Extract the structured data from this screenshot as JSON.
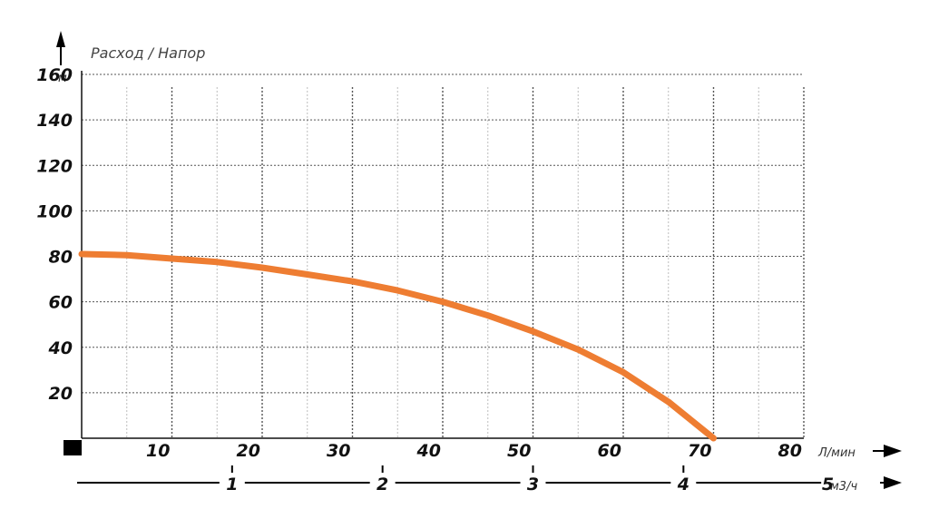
{
  "chart_data": {
    "type": "line",
    "title": "Расход / Напор",
    "y_unit": "м",
    "x_unit": "Л/мин",
    "x2_unit": "м3/ч",
    "xlim": [
      0,
      80
    ],
    "ylim": [
      0,
      160
    ],
    "x_ticks": [
      "10",
      "20",
      "30",
      "40",
      "50",
      "60",
      "70",
      "80"
    ],
    "y_ticks": [
      "20",
      "40",
      "60",
      "80",
      "100",
      "120",
      "140",
      "160"
    ],
    "x2_ticks": [
      "1",
      "2",
      "3",
      "4",
      "5"
    ],
    "x2_values": [
      1,
      2,
      3,
      4,
      5
    ],
    "grid": true,
    "colors": {
      "curve": "#EE7D32",
      "grid": "#555555",
      "axis": "#111111"
    },
    "series": [
      {
        "x": [
          0,
          5,
          10,
          15,
          20,
          25,
          30,
          35,
          40,
          45,
          50,
          55,
          60,
          65,
          70
        ],
        "y": [
          81,
          80.5,
          79,
          77.5,
          75,
          72,
          69,
          65,
          60,
          54,
          47,
          39,
          29,
          16,
          0
        ]
      }
    ]
  }
}
